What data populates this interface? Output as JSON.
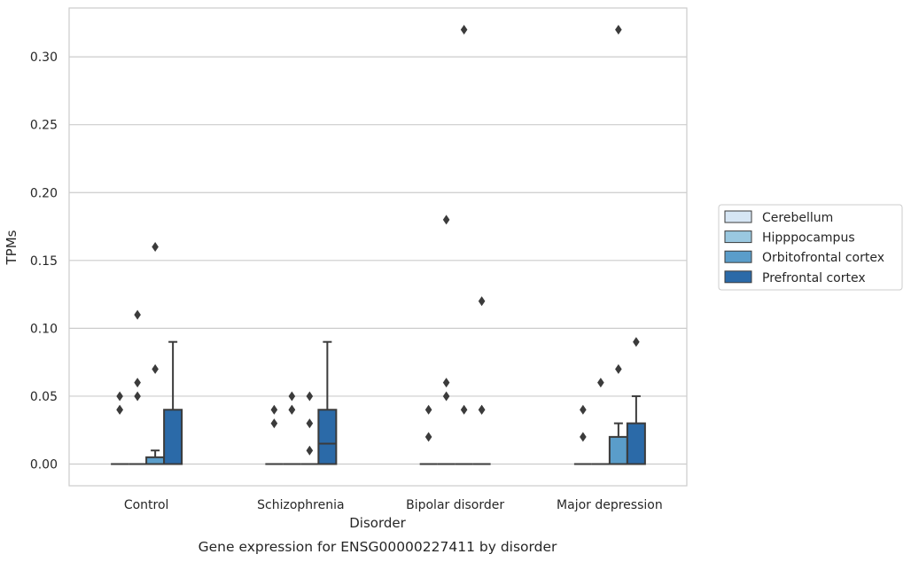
{
  "chart_data": {
    "type": "box",
    "caption": "Gene expression for ENSG00000227411 by disorder",
    "xlabel": "Disorder",
    "ylabel": "TPMs",
    "ylim": [
      -0.016,
      0.336
    ],
    "yticks": [
      "0.00",
      "0.05",
      "0.10",
      "0.15",
      "0.20",
      "0.25",
      "0.30"
    ],
    "ytick_values": [
      0.0,
      0.05,
      0.1,
      0.15,
      0.2,
      0.25,
      0.3
    ],
    "grid": "horizontal",
    "legend_position": "right",
    "categories": [
      "Control",
      "Schizophrenia",
      "Bipolar disorder",
      "Major depression"
    ],
    "series": [
      {
        "name": "Cerebellum",
        "color": "#d6e6f4",
        "boxes": [
          {
            "min": 0,
            "q1": 0,
            "median": 0,
            "q3": 0,
            "max": 0,
            "outliers": [
              0.04,
              0.05,
              0.04
            ]
          },
          {
            "min": 0,
            "q1": 0,
            "median": 0,
            "q3": 0,
            "max": 0,
            "outliers": [
              0.04,
              0.03
            ]
          },
          {
            "min": 0,
            "q1": 0,
            "median": 0,
            "q3": 0,
            "max": 0,
            "outliers": [
              0.04,
              0.02
            ]
          },
          {
            "min": 0,
            "q1": 0,
            "median": 0,
            "q3": 0,
            "max": 0,
            "outliers": [
              0.04,
              0.02
            ]
          }
        ]
      },
      {
        "name": "Hipppocampus",
        "color": "#9ac8e0",
        "boxes": [
          {
            "min": 0,
            "q1": 0,
            "median": 0,
            "q3": 0,
            "max": 0,
            "outliers": [
              0.11,
              0.06,
              0.05
            ]
          },
          {
            "min": 0,
            "q1": 0,
            "median": 0,
            "q3": 0,
            "max": 0,
            "outliers": [
              0.05,
              0.04,
              0.04
            ]
          },
          {
            "min": 0,
            "q1": 0,
            "median": 0,
            "q3": 0,
            "max": 0,
            "outliers": [
              0.18,
              0.06,
              0.05
            ]
          },
          {
            "min": 0,
            "q1": 0,
            "median": 0,
            "q3": 0,
            "max": 0,
            "outliers": [
              0.06
            ]
          }
        ]
      },
      {
        "name": "Orbitofrontal cortex",
        "color": "#5a9dca",
        "boxes": [
          {
            "min": 0,
            "q1": 0,
            "median": 0,
            "q3": 0.005,
            "max": 0.01,
            "outliers": [
              0.16,
              0.07
            ]
          },
          {
            "min": 0,
            "q1": 0,
            "median": 0,
            "q3": 0,
            "max": 0,
            "outliers": [
              0.05,
              0.03,
              0.01
            ]
          },
          {
            "min": 0,
            "q1": 0,
            "median": 0,
            "q3": 0,
            "max": 0,
            "outliers": [
              0.32,
              0.04
            ]
          },
          {
            "min": 0,
            "q1": 0,
            "median": 0,
            "q3": 0.02,
            "max": 0.03,
            "outliers": [
              0.32,
              0.07
            ]
          }
        ]
      },
      {
        "name": "Prefrontal cortex",
        "color": "#2b6aa8",
        "boxes": [
          {
            "min": 0,
            "q1": 0,
            "median": 0,
            "q3": 0.04,
            "max": 0.09,
            "outliers": []
          },
          {
            "min": 0,
            "q1": 0,
            "median": 0.015,
            "q3": 0.04,
            "max": 0.09,
            "outliers": []
          },
          {
            "min": 0,
            "q1": 0,
            "median": 0,
            "q3": 0,
            "max": 0,
            "outliers": [
              0.12,
              0.04,
              0.04
            ]
          },
          {
            "min": 0,
            "q1": 0,
            "median": 0,
            "q3": 0.03,
            "max": 0.05,
            "outliers": [
              0.09
            ]
          }
        ]
      }
    ]
  }
}
